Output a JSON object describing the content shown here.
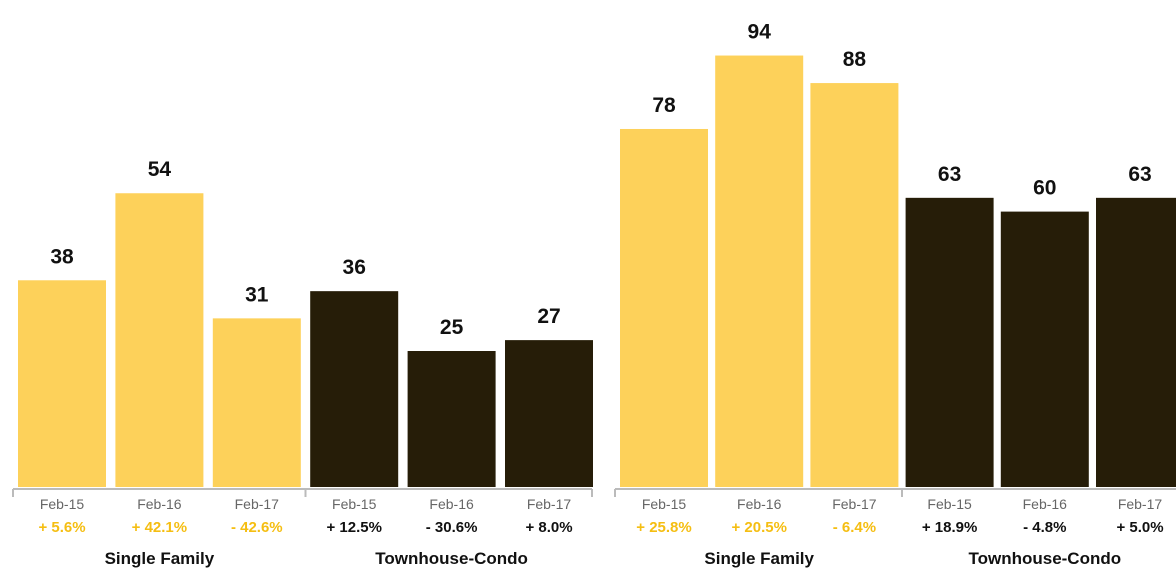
{
  "colors": {
    "single_family": "#FDD15A",
    "townhouse": "#261D08",
    "pct_single": "#F5BE12",
    "pct_townhouse": "#111111",
    "axis": "#BBBBBB"
  },
  "chart_data": [
    {
      "type": "bar",
      "title": "",
      "xlabel": "",
      "ylabel": "",
      "ylim": [
        0,
        60
      ],
      "groups": [
        {
          "name": "Single Family",
          "categories": [
            "Feb-15",
            "Feb-16",
            "Feb-17"
          ],
          "values": [
            38,
            54,
            31
          ],
          "changes": [
            "+ 5.6%",
            "+ 42.1%",
            "- 42.6%"
          ]
        },
        {
          "name": "Townhouse-Condo",
          "categories": [
            "Feb-15",
            "Feb-16",
            "Feb-17"
          ],
          "values": [
            36,
            25,
            27
          ],
          "changes": [
            "+ 12.5%",
            "- 30.6%",
            "+ 8.0%"
          ]
        }
      ]
    },
    {
      "type": "bar",
      "title": "",
      "xlabel": "",
      "ylabel": "",
      "ylim": [
        0,
        100
      ],
      "groups": [
        {
          "name": "Single Family",
          "categories": [
            "Feb-15",
            "Feb-16",
            "Feb-17"
          ],
          "values": [
            78,
            94,
            88
          ],
          "changes": [
            "+ 25.8%",
            "+ 20.5%",
            "- 6.4%"
          ]
        },
        {
          "name": "Townhouse-Condo",
          "categories": [
            "Feb-15",
            "Feb-16",
            "Feb-17"
          ],
          "values": [
            63,
            60,
            63
          ],
          "changes": [
            "+ 18.9%",
            "- 4.8%",
            "+ 5.0%"
          ]
        }
      ]
    }
  ]
}
